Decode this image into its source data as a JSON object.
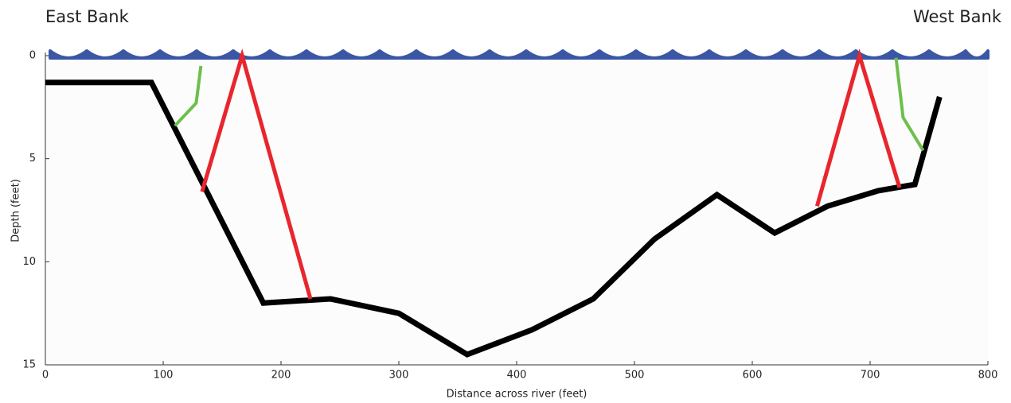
{
  "chart_data": {
    "type": "line",
    "annotations": [
      "East Bank",
      "West Bank"
    ],
    "xlabel": "Distance across river (feet)",
    "ylabel": "Depth (feet)",
    "xlim": [
      0,
      800
    ],
    "xticks": [
      0,
      100,
      200,
      300,
      400,
      500,
      600,
      700,
      800
    ],
    "ylim": [
      0,
      15
    ],
    "yticks": [
      0,
      5,
      10,
      15
    ],
    "y_inverted": true,
    "series": [
      {
        "color": "#000000",
        "x": [
          0,
          90,
          185,
          242,
          300,
          358,
          413,
          465,
          517,
          570,
          619,
          664,
          707,
          738,
          759
        ],
        "values": [
          1.3,
          1.3,
          12,
          11.8,
          12.5,
          14.5,
          13.3,
          11.8,
          8.9,
          6.75,
          8.6,
          7.3,
          6.55,
          6.25,
          2
        ]
      },
      {
        "color": "#e8262d",
        "x": [
          133,
          167,
          225
        ],
        "values": [
          6.6,
          0,
          11.8
        ]
      },
      {
        "color": "#e8262d",
        "x": [
          655,
          691,
          725
        ],
        "values": [
          7.3,
          0,
          6.4
        ]
      },
      {
        "color": "#6cc04a",
        "x": [
          132,
          128,
          110
        ],
        "values": [
          0.5,
          2.3,
          3.4
        ]
      },
      {
        "color": "#6cc04a",
        "x": [
          722,
          728,
          745
        ],
        "values": [
          0.1,
          3,
          4.6
        ]
      }
    ]
  }
}
